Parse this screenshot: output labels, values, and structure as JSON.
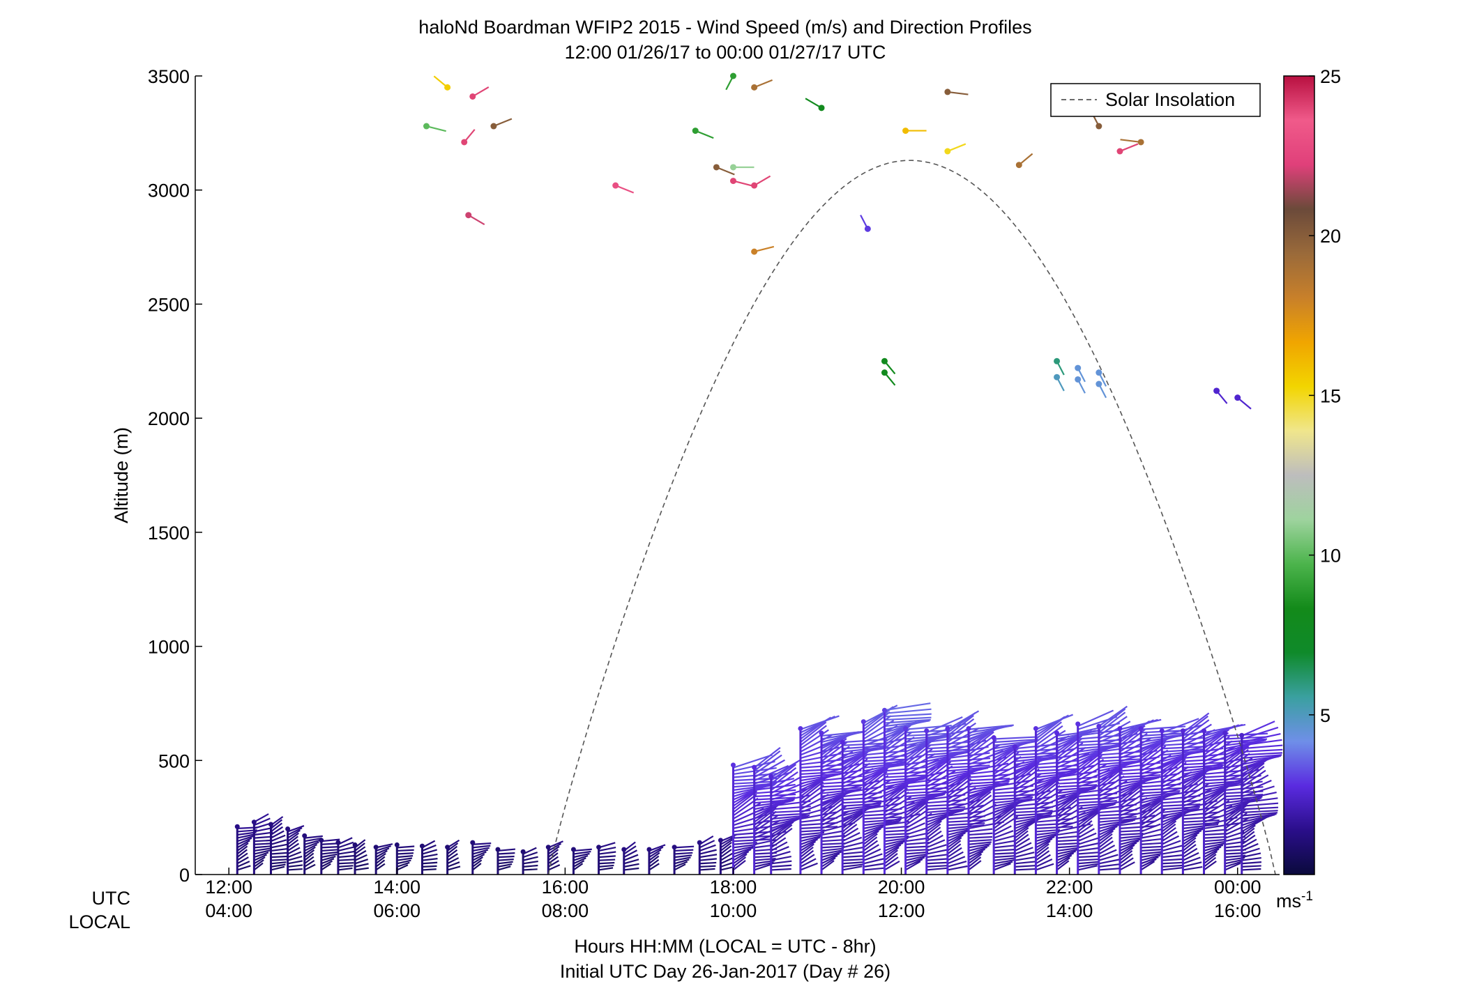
{
  "chart_data": {
    "type": "scatter",
    "title": "haloNd Boardman WFIP2 2015 - Wind Speed (m/s) and Direction Profiles",
    "subtitle": "12:00 01/26/17 to 00:00 01/27/17  UTC",
    "ylabel": "Altitude (m)",
    "ylim": [
      0,
      3500
    ],
    "yticks": [
      "0",
      "500",
      "1000",
      "1500",
      "2000",
      "2500",
      "3000",
      "3500"
    ],
    "xlim_hours": [
      11.6,
      24.5
    ],
    "utc_tick_hours": [
      12,
      14,
      16,
      18,
      20,
      22,
      24
    ],
    "utc_tick_labels": [
      "12:00",
      "14:00",
      "16:00",
      "18:00",
      "20:00",
      "22:00",
      "00:00"
    ],
    "local_tick_labels": [
      "04:00",
      "06:00",
      "08:00",
      "10:00",
      "12:00",
      "14:00",
      "16:00"
    ],
    "row_label_utc": "UTC",
    "row_label_local": "LOCAL",
    "xlabel": "Hours HH:MM  (LOCAL = UTC - 8hr)",
    "xlabel2": "Initial UTC Day 26-Jan-2017 (Day # 26)",
    "legend": {
      "label": "Solar Insolation",
      "position": "top-right"
    },
    "colorbar": {
      "min": 0,
      "max": 25,
      "ticks": [
        "5",
        "10",
        "15",
        "20",
        "25"
      ],
      "unit": "ms",
      "unit_exp": "-1",
      "colors": [
        "#0a0a3c",
        "#2a0e8a",
        "#5a2be0",
        "#6f8fe8",
        "#3aa0a0",
        "#0f8a2a",
        "#138a1a",
        "#4cb44c",
        "#9ed39e",
        "#bdbdbd",
        "#f0e68c",
        "#f2d500",
        "#f0a500",
        "#c8802a",
        "#9a6a3a",
        "#6b4a3a",
        "#e0407a",
        "#f05a8a",
        "#b81040"
      ]
    },
    "solar_insolation": {
      "start_hour": 15.8,
      "peak_hour": 20.1,
      "end_hour": 24.45,
      "peak_altitude": 3130,
      "color": "#555555"
    },
    "wind_profiles": [
      {
        "t": 12.1,
        "top": 210,
        "spd": 1.2
      },
      {
        "t": 12.3,
        "top": 230,
        "spd": 1.2
      },
      {
        "t": 12.5,
        "top": 220,
        "spd": 1.1
      },
      {
        "t": 12.7,
        "top": 200,
        "spd": 1.1
      },
      {
        "t": 12.9,
        "top": 170,
        "spd": 1.0
      },
      {
        "t": 13.1,
        "top": 150,
        "spd": 1.0
      },
      {
        "t": 13.3,
        "top": 140,
        "spd": 1.0
      },
      {
        "t": 13.5,
        "top": 130,
        "spd": 0.9
      },
      {
        "t": 13.75,
        "top": 120,
        "spd": 0.9
      },
      {
        "t": 14.0,
        "top": 130,
        "spd": 0.9
      },
      {
        "t": 14.3,
        "top": 125,
        "spd": 0.9
      },
      {
        "t": 14.6,
        "top": 120,
        "spd": 0.9
      },
      {
        "t": 14.9,
        "top": 140,
        "spd": 1.0
      },
      {
        "t": 15.2,
        "top": 110,
        "spd": 0.9
      },
      {
        "t": 15.5,
        "top": 100,
        "spd": 0.9
      },
      {
        "t": 15.8,
        "top": 120,
        "spd": 1.0
      },
      {
        "t": 16.1,
        "top": 110,
        "spd": 1.0
      },
      {
        "t": 16.4,
        "top": 120,
        "spd": 1.0
      },
      {
        "t": 16.7,
        "top": 110,
        "spd": 1.1
      },
      {
        "t": 17.0,
        "top": 110,
        "spd": 1.1
      },
      {
        "t": 17.3,
        "top": 120,
        "spd": 1.1
      },
      {
        "t": 17.6,
        "top": 140,
        "spd": 1.2
      },
      {
        "t": 17.85,
        "top": 150,
        "spd": 1.2
      },
      {
        "t": 18.0,
        "top": 480,
        "spd": 2.6
      },
      {
        "t": 18.25,
        "top": 470,
        "spd": 2.5
      },
      {
        "t": 18.45,
        "top": 430,
        "spd": 2.4
      },
      {
        "t": 18.8,
        "top": 640,
        "spd": 2.6
      },
      {
        "t": 19.05,
        "top": 620,
        "spd": 2.6
      },
      {
        "t": 19.3,
        "top": 580,
        "spd": 2.5
      },
      {
        "t": 19.55,
        "top": 670,
        "spd": 2.7
      },
      {
        "t": 19.8,
        "top": 720,
        "spd": 2.8
      },
      {
        "t": 20.05,
        "top": 640,
        "spd": 2.7
      },
      {
        "t": 20.3,
        "top": 630,
        "spd": 2.6
      },
      {
        "t": 20.55,
        "top": 640,
        "spd": 2.6
      },
      {
        "t": 20.8,
        "top": 640,
        "spd": 2.6
      },
      {
        "t": 21.1,
        "top": 600,
        "spd": 2.5
      },
      {
        "t": 21.35,
        "top": 560,
        "spd": 2.4
      },
      {
        "t": 21.6,
        "top": 640,
        "spd": 2.6
      },
      {
        "t": 21.85,
        "top": 620,
        "spd": 2.5
      },
      {
        "t": 22.1,
        "top": 660,
        "spd": 2.6
      },
      {
        "t": 22.35,
        "top": 650,
        "spd": 2.6
      },
      {
        "t": 22.6,
        "top": 640,
        "spd": 2.5
      },
      {
        "t": 22.85,
        "top": 640,
        "spd": 2.5
      },
      {
        "t": 23.1,
        "top": 630,
        "spd": 2.5
      },
      {
        "t": 23.35,
        "top": 630,
        "spd": 2.4
      },
      {
        "t": 23.6,
        "top": 630,
        "spd": 2.4
      },
      {
        "t": 23.85,
        "top": 620,
        "spd": 2.3
      },
      {
        "t": 24.05,
        "top": 610,
        "spd": 2.2
      }
    ],
    "barbs": [
      {
        "t": 14.6,
        "alt": 3450,
        "spd": 15.5,
        "dir": 140
      },
      {
        "t": 14.9,
        "alt": 3410,
        "spd": 24,
        "dir": 230
      },
      {
        "t": 14.35,
        "alt": 3280,
        "spd": 10,
        "dir": 290
      },
      {
        "t": 15.15,
        "alt": 3280,
        "spd": 20,
        "dir": 240
      },
      {
        "t": 14.8,
        "alt": 3210,
        "spd": 24,
        "dir": 210
      },
      {
        "t": 14.85,
        "alt": 2890,
        "spd": 22,
        "dir": 310
      },
      {
        "t": 16.6,
        "alt": 3020,
        "spd": 23,
        "dir": 300
      },
      {
        "t": 18.0,
        "alt": 3500,
        "spd": 9,
        "dir": 20
      },
      {
        "t": 18.25,
        "alt": 3450,
        "spd": 19,
        "dir": 240
      },
      {
        "t": 17.55,
        "alt": 3260,
        "spd": 9,
        "dir": 300
      },
      {
        "t": 17.8,
        "alt": 3100,
        "spd": 20,
        "dir": 300
      },
      {
        "t": 18.0,
        "alt": 3100,
        "spd": 11,
        "dir": 270
      },
      {
        "t": 18.0,
        "alt": 3040,
        "spd": 24,
        "dir": 290
      },
      {
        "t": 18.25,
        "alt": 3020,
        "spd": 24,
        "dir": 230
      },
      {
        "t": 18.25,
        "alt": 2730,
        "spd": 18,
        "dir": 250
      },
      {
        "t": 19.05,
        "alt": 3360,
        "spd": 8,
        "dir": 130
      },
      {
        "t": 19.6,
        "alt": 2830,
        "spd": 3,
        "dir": 160
      },
      {
        "t": 20.05,
        "alt": 3260,
        "spd": 16,
        "dir": 270
      },
      {
        "t": 20.55,
        "alt": 3430,
        "spd": 20,
        "dir": 280
      },
      {
        "t": 20.55,
        "alt": 3170,
        "spd": 15,
        "dir": 240
      },
      {
        "t": 21.4,
        "alt": 3110,
        "spd": 19,
        "dir": 220
      },
      {
        "t": 22.35,
        "alt": 3280,
        "spd": 20,
        "dir": 160
      },
      {
        "t": 22.6,
        "alt": 3170,
        "spd": 24,
        "dir": 240
      },
      {
        "t": 22.85,
        "alt": 3210,
        "spd": 19,
        "dir": 100
      },
      {
        "t": 19.8,
        "alt": 2250,
        "spd": 8,
        "dir": 330
      },
      {
        "t": 19.8,
        "alt": 2200,
        "spd": 8,
        "dir": 330
      },
      {
        "t": 21.85,
        "alt": 2250,
        "spd": 6,
        "dir": 340
      },
      {
        "t": 21.85,
        "alt": 2180,
        "spd": 5,
        "dir": 340
      },
      {
        "t": 22.1,
        "alt": 2220,
        "spd": 4.5,
        "dir": 340
      },
      {
        "t": 22.1,
        "alt": 2170,
        "spd": 4.5,
        "dir": 340
      },
      {
        "t": 22.35,
        "alt": 2200,
        "spd": 4.5,
        "dir": 340
      },
      {
        "t": 22.35,
        "alt": 2150,
        "spd": 4.5,
        "dir": 340
      },
      {
        "t": 23.75,
        "alt": 2120,
        "spd": 2.5,
        "dir": 330
      },
      {
        "t": 24.0,
        "alt": 2090,
        "spd": 2.5,
        "dir": 320
      }
    ]
  }
}
